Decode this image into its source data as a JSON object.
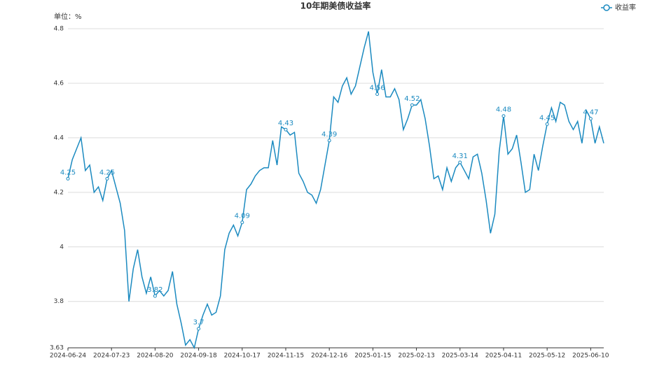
{
  "chart_data": {
    "type": "line",
    "title": "10年期美债收益率",
    "y_label": "单位：%",
    "categories": [
      "2024-06-24",
      null,
      null,
      null,
      null,
      null,
      null,
      null,
      null,
      null,
      "2024-07-23",
      null,
      null,
      null,
      null,
      null,
      null,
      null,
      null,
      null,
      "2024-08-20",
      null,
      null,
      null,
      null,
      null,
      null,
      null,
      null,
      null,
      "2024-09-18",
      null,
      null,
      null,
      null,
      null,
      null,
      null,
      null,
      null,
      "2024-10-17",
      null,
      null,
      null,
      null,
      null,
      null,
      null,
      null,
      null,
      "2024-11-15",
      null,
      null,
      null,
      null,
      null,
      null,
      null,
      null,
      null,
      "2024-12-16",
      null,
      null,
      null,
      null,
      null,
      null,
      null,
      null,
      null,
      "2025-01-15",
      null,
      null,
      null,
      null,
      null,
      null,
      null,
      null,
      null,
      "2025-02-13",
      null,
      null,
      null,
      null,
      null,
      null,
      null,
      null,
      null,
      "2025-03-14",
      null,
      null,
      null,
      null,
      null,
      null,
      null,
      null,
      null,
      "2025-04-11",
      null,
      null,
      null,
      null,
      null,
      null,
      null,
      null,
      null,
      "2025-05-12",
      null,
      null,
      null,
      null,
      null,
      null,
      null,
      null,
      null,
      "2025-06-10",
      null,
      null,
      null
    ],
    "series": [
      {
        "name": "收益率",
        "color": "#1b8ac0",
        "values": [
          4.25,
          4.32,
          4.36,
          4.4,
          4.28,
          4.3,
          4.2,
          4.22,
          4.17,
          4.25,
          4.28,
          4.22,
          4.16,
          4.06,
          3.8,
          3.92,
          3.99,
          3.89,
          3.83,
          3.89,
          3.82,
          3.84,
          3.82,
          3.84,
          3.91,
          3.79,
          3.72,
          3.64,
          3.66,
          3.63,
          3.7,
          3.75,
          3.79,
          3.75,
          3.76,
          3.82,
          3.99,
          4.05,
          4.08,
          4.04,
          4.09,
          4.21,
          4.23,
          4.26,
          4.28,
          4.29,
          4.29,
          4.39,
          4.3,
          4.44,
          4.43,
          4.41,
          4.42,
          4.27,
          4.24,
          4.2,
          4.19,
          4.16,
          4.21,
          4.3,
          4.39,
          4.55,
          4.53,
          4.59,
          4.62,
          4.56,
          4.59,
          4.66,
          4.73,
          4.79,
          4.64,
          4.56,
          4.65,
          4.55,
          4.55,
          4.58,
          4.54,
          4.43,
          4.47,
          4.52,
          4.52,
          4.54,
          4.47,
          4.37,
          4.25,
          4.26,
          4.21,
          4.29,
          4.24,
          4.29,
          4.31,
          4.28,
          4.25,
          4.33,
          4.34,
          4.27,
          4.17,
          4.05,
          4.12,
          4.35,
          4.48,
          4.34,
          4.36,
          4.41,
          4.31,
          4.2,
          4.21,
          4.34,
          4.28,
          4.37,
          4.45,
          4.51,
          4.46,
          4.53,
          4.52,
          4.46,
          4.43,
          4.46,
          4.38,
          4.5,
          4.47,
          4.38,
          4.44,
          4.38
        ],
        "value_labels": [
          "4.25",
          null,
          null,
          null,
          null,
          null,
          null,
          null,
          null,
          "4.25",
          null,
          null,
          null,
          null,
          null,
          null,
          null,
          null,
          null,
          null,
          "3.82",
          null,
          null,
          null,
          null,
          null,
          null,
          null,
          null,
          null,
          "3.7",
          null,
          null,
          null,
          null,
          null,
          null,
          null,
          null,
          null,
          "4.09",
          null,
          null,
          null,
          null,
          null,
          null,
          null,
          null,
          null,
          "4.43",
          null,
          null,
          null,
          null,
          null,
          null,
          null,
          null,
          null,
          "4.39",
          null,
          null,
          null,
          null,
          null,
          null,
          null,
          null,
          null,
          null,
          "4.56",
          null,
          null,
          null,
          null,
          null,
          null,
          null,
          "4.52",
          null,
          null,
          null,
          null,
          null,
          null,
          null,
          null,
          null,
          null,
          "4.31",
          null,
          null,
          null,
          null,
          null,
          null,
          null,
          null,
          null,
          "4.48",
          null,
          null,
          null,
          null,
          null,
          null,
          null,
          null,
          null,
          "4.45",
          null,
          null,
          null,
          null,
          null,
          null,
          null,
          null,
          null,
          "4.47",
          null,
          null,
          null
        ]
      }
    ],
    "ylim": [
      3.63,
      4.8
    ],
    "yticks": [
      3.63,
      3.8,
      4,
      4.2,
      4.4,
      4.6,
      4.8
    ],
    "grid": true,
    "legend": "top-right"
  }
}
